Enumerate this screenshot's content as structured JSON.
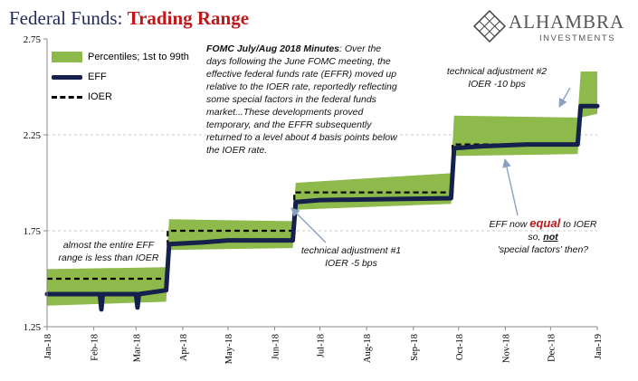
{
  "header": {
    "title_main": "Federal Funds: ",
    "title_accent": "Trading Range"
  },
  "logo": {
    "name": "ALHAMBRA",
    "sub": "INVESTMENTS",
    "mark": "diamond-lattice-logo"
  },
  "legend": {
    "percentiles": "Percentiles; 1st to 99th",
    "effr": "EFF",
    "ioer": "IOER"
  },
  "annotations": {
    "fomc_lead": "FOMC July/Aug 2018 Minutes",
    "fomc_text": ":  Over the days following the June FOMC meeting, the effective federal funds rate (EFFR) moved up relative to the IOER rate, reportedly reflecting some special factors in the federal funds market...These developments proved temporary, and the EFFR subsequently returned to a level about 4 basis points below the IOER rate.",
    "below_1": "almost the entire EFF",
    "below_2": "range is less than IOER",
    "adj1_1": "technical adjustment #1",
    "adj1_2": "IOER -5 bps",
    "adj2_1": "technical adjustment #2",
    "adj2_2": "IOER -10 bps",
    "equal_pre": "EFF now ",
    "equal_word": "equal",
    "equal_post": " to IOER",
    "so_pre": "so, ",
    "so_word": "not",
    "special": "'special factors' then?"
  },
  "colors": {
    "band": "#8dba4a",
    "eff": "#15204d",
    "ioer": "#000000",
    "title": "#1f2a5a",
    "accent": "#c0191b",
    "arrow": "#8aa2bf"
  },
  "chart_data": {
    "type": "line",
    "ylim": [
      1.25,
      2.75
    ],
    "yticks": [
      "1.25",
      "1.75",
      "2.25",
      "2.75"
    ],
    "xticks": [
      "Jan-18",
      "Feb-18",
      "Mar-18",
      "Apr-18",
      "May-18",
      "Jun-18",
      "Jul-18",
      "Aug-18",
      "Sep-18",
      "Oct-18",
      "Nov-18",
      "Dec-18",
      "Jan-19"
    ],
    "grid": "horizontal dashed",
    "legend_position": "top-left",
    "series": [
      {
        "name": "IOER",
        "x": [
          "Jan-18",
          "Mar-22-18",
          "Mar-22-18",
          "Jun-14-18",
          "Jun-14-18",
          "Sep-27-18",
          "Sep-27-18",
          "Dec-20-18",
          "Dec-20-18",
          "Jan-19"
        ],
        "values": [
          1.5,
          1.5,
          1.75,
          1.75,
          1.95,
          1.95,
          2.2,
          2.2,
          2.4,
          2.4
        ]
      },
      {
        "name": "EFF",
        "x": [
          "Jan-18",
          "Feb-05-18",
          "Feb-06-18",
          "Feb-07-18",
          "Mar-01-18",
          "Mar-02-18",
          "Mar-03-18",
          "Mar-21-18",
          "Mar-23-18",
          "Apr-15-18",
          "May-01-18",
          "Jun-13-18",
          "Jun-15-18",
          "Jul-01-18",
          "Sep-26-18",
          "Sep-28-18",
          "Oct-15-18",
          "Nov-15-18",
          "Dec-19-18",
          "Dec-21-18",
          "Jan-19"
        ],
        "values": [
          1.42,
          1.42,
          1.34,
          1.42,
          1.42,
          1.35,
          1.42,
          1.44,
          1.68,
          1.69,
          1.7,
          1.7,
          1.9,
          1.91,
          1.92,
          2.18,
          2.19,
          2.2,
          2.2,
          2.4,
          2.4
        ]
      },
      {
        "name": "Percentiles; 1st to 99th",
        "x": [
          "Jan-18",
          "Mar-21-18",
          "Mar-23-18",
          "Jun-13-18",
          "Jun-15-18",
          "Sep-26-18",
          "Sep-28-18",
          "Dec-19-18",
          "Dec-21-18",
          "Jan-19"
        ],
        "low": [
          1.36,
          1.38,
          1.65,
          1.66,
          1.86,
          1.89,
          2.14,
          2.15,
          2.34,
          2.36
        ],
        "high": [
          1.55,
          1.56,
          1.81,
          1.8,
          2.0,
          2.05,
          2.35,
          2.34,
          2.58,
          2.58
        ]
      }
    ]
  }
}
